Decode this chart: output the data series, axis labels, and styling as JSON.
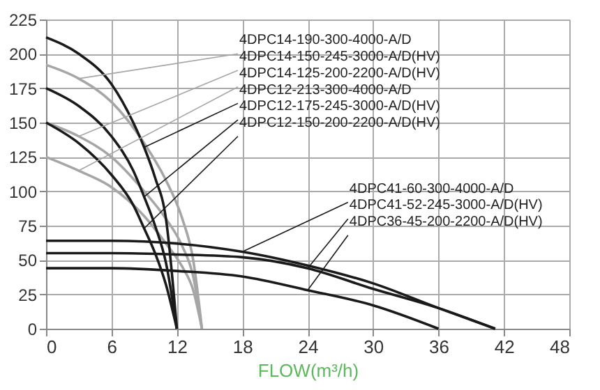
{
  "chart_data": {
    "type": "line",
    "xlabel": "FLOW(m³/h)",
    "xlim": [
      0,
      48
    ],
    "xticks": [
      0,
      6,
      12,
      18,
      24,
      30,
      36,
      42,
      48
    ],
    "ylim": [
      0,
      225
    ],
    "yticks": [
      0,
      25,
      50,
      75,
      100,
      125,
      150,
      175,
      200,
      225
    ],
    "grid": true,
    "marker": "none",
    "line_style": "solid",
    "legend": false,
    "series": [
      {
        "name": "4DPC14-190-300-4000-A/D",
        "color": "#a6a6a6",
        "x": [
          0,
          3,
          6,
          9,
          11,
          12.5,
          13.5,
          14.3
        ],
        "values": [
          192,
          182,
          165,
          135,
          108,
          80,
          50,
          0
        ]
      },
      {
        "name": "4DPC14-150-245-3000-A/D(HV)",
        "color": "#a6a6a6",
        "x": [
          0,
          3,
          6,
          9,
          11,
          12.5,
          13.5,
          14.3
        ],
        "values": [
          150,
          140,
          125,
          100,
          80,
          60,
          38,
          0
        ]
      },
      {
        "name": "4DPC14-125-200-2200-A/D(HV)",
        "color": "#a6a6a6",
        "x": [
          0,
          3,
          6,
          9,
          11,
          12.5,
          13.5,
          14.3
        ],
        "values": [
          125,
          115,
          103,
          82,
          62,
          45,
          28,
          0
        ]
      },
      {
        "name": "4DPC12-213-300-4000-A/D",
        "color": "#1a1a1a",
        "x": [
          0,
          3,
          6,
          8,
          9,
          10,
          11,
          12
        ],
        "values": [
          212,
          200,
          178,
          150,
          132,
          110,
          80,
          0
        ]
      },
      {
        "name": "4DPC12-175-245-3000-A/D(HV)",
        "color": "#1a1a1a",
        "x": [
          0,
          3,
          6,
          8,
          9,
          10,
          11,
          12
        ],
        "values": [
          175,
          162,
          140,
          115,
          96,
          75,
          48,
          0
        ]
      },
      {
        "name": "4DPC12-150-200-2200-A/D(HV)",
        "color": "#1a1a1a",
        "x": [
          0,
          3,
          6,
          8,
          9,
          10,
          11,
          12
        ],
        "values": [
          150,
          135,
          112,
          90,
          73,
          55,
          32,
          0
        ]
      },
      {
        "name": "4DPC41-60-300-4000-A/D",
        "color": "#1a1a1a",
        "x": [
          0,
          6,
          12,
          18,
          24,
          30,
          36,
          41.2
        ],
        "values": [
          64,
          64,
          62,
          56,
          46,
          33,
          15,
          0
        ]
      },
      {
        "name": "4DPC41-52-245-3000-A/D(HV)",
        "color": "#1a1a1a",
        "x": [
          0,
          6,
          12,
          18,
          24,
          30,
          36,
          41.2
        ],
        "values": [
          55,
          55,
          54,
          52,
          44,
          29,
          15,
          0
        ]
      },
      {
        "name": "4DPC36-45-200-2200-A/D(HV)",
        "color": "#1a1a1a",
        "x": [
          0,
          6,
          12,
          18,
          24,
          30,
          36
        ],
        "values": [
          44,
          44,
          42,
          38,
          28,
          17,
          0
        ]
      }
    ]
  }
}
